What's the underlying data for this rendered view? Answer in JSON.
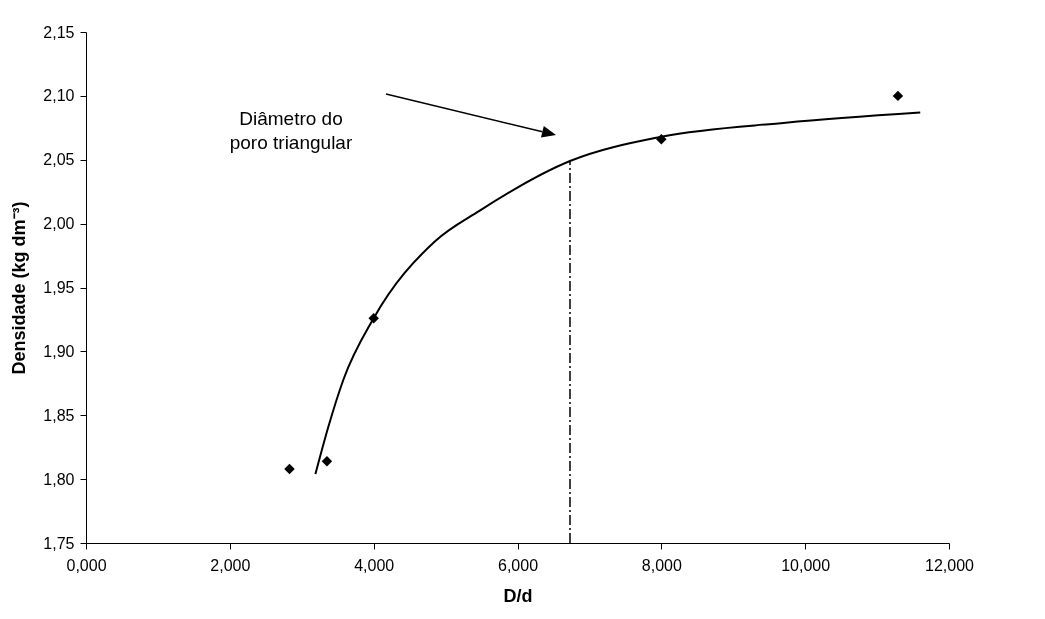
{
  "chart_data": {
    "type": "scatter",
    "xlabel": "D/d",
    "ylabel": "Densidade (kg dm⁻³)",
    "xlim": [
      0,
      12
    ],
    "ylim": [
      1.75,
      2.15
    ],
    "xticks": [
      {
        "value": 0,
        "label": "0,000"
      },
      {
        "value": 2,
        "label": "2,000"
      },
      {
        "value": 4,
        "label": "4,000"
      },
      {
        "value": 6,
        "label": "6,000"
      },
      {
        "value": 8,
        "label": "8,000"
      },
      {
        "value": 10,
        "label": "10,000"
      },
      {
        "value": 12,
        "label": "12,000"
      }
    ],
    "yticks": [
      {
        "value": 1.75,
        "label": "1,75"
      },
      {
        "value": 1.8,
        "label": "1,80"
      },
      {
        "value": 1.85,
        "label": "1,85"
      },
      {
        "value": 1.9,
        "label": "1,90"
      },
      {
        "value": 1.95,
        "label": "1,95"
      },
      {
        "value": 2.0,
        "label": "2,00"
      },
      {
        "value": 2.05,
        "label": "2,05"
      },
      {
        "value": 2.1,
        "label": "2,10"
      },
      {
        "value": 2.15,
        "label": "2,15"
      }
    ],
    "grid": false,
    "marker": "diamond",
    "series": [
      {
        "color": "#000000",
        "x": [
          2.83,
          3.35,
          4.0,
          8.0,
          11.29
        ],
        "values": [
          1.808,
          1.814,
          1.926,
          2.066,
          2.1
        ]
      },
      {
        "type": "line",
        "color": "#000000",
        "line_style": "solid",
        "marker": "none",
        "x": [
          3.19,
          3.37,
          3.58,
          4.0,
          4.85,
          5.47,
          6.73,
          8.0,
          9.73,
          11.6
        ],
        "values": [
          1.804,
          1.841,
          1.878,
          1.926,
          1.986,
          2.01,
          2.049,
          2.068,
          2.079,
          2.087
        ]
      }
    ],
    "ref_lines": [
      {
        "axis": "x",
        "value": 6.73,
        "color": "#000000",
        "line_style": "dashdot"
      }
    ],
    "annotations": [
      "Diâmetro do\nporo triangular"
    ]
  }
}
